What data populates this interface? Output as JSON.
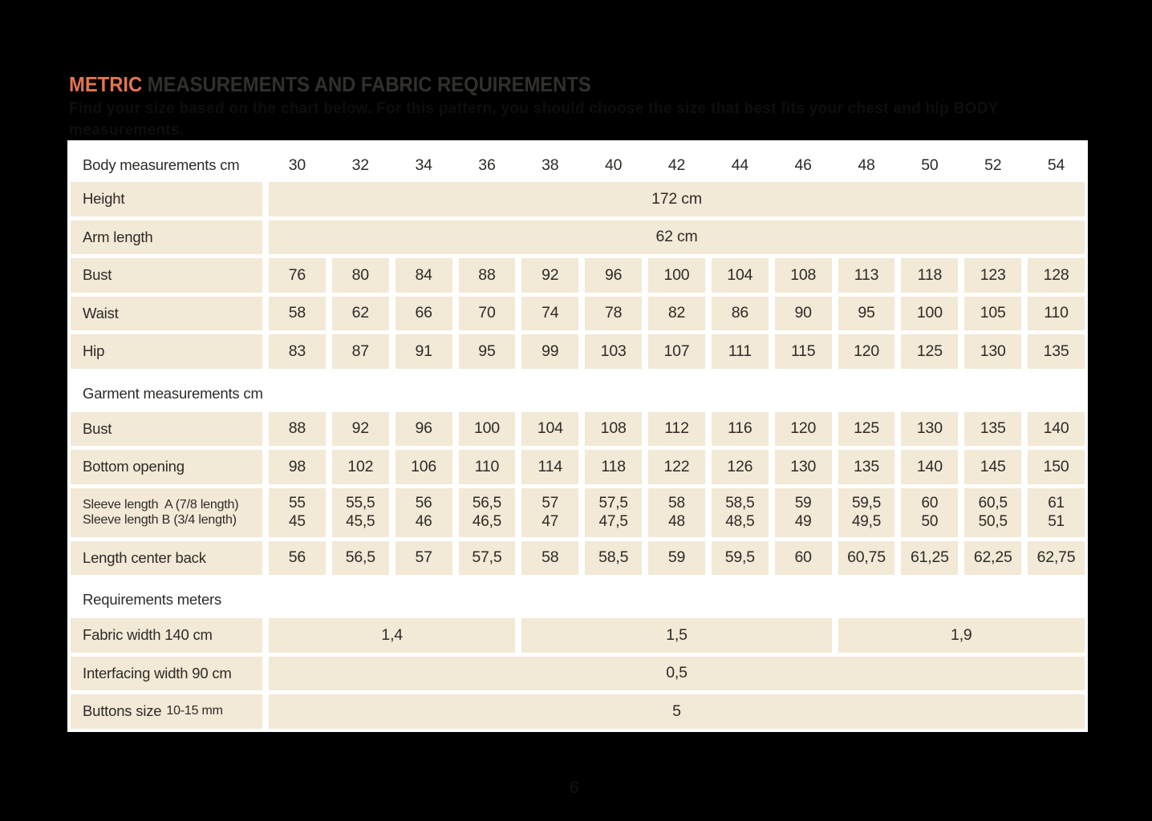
{
  "page": {
    "background": "#000000",
    "page_number": "6"
  },
  "header": {
    "title_accent": "METRIC",
    "title_rest": " MEASUREMENTS AND FABRIC REQUIREMENTS",
    "subtitle_line1": "Find your size based on the chart below. For this pattern, you should choose the size that best fits your chest and hip BODY",
    "subtitle_line2": "measurements.",
    "accent_color": "#e2764e"
  },
  "table": {
    "cell_color": "#f2e9d6",
    "text_color": "#2d2b28",
    "rows": [
      {
        "type": "head",
        "label": "Body measurements cm",
        "values": [
          "30",
          "32",
          "34",
          "36",
          "38",
          "40",
          "42",
          "44",
          "46",
          "48",
          "50",
          "52",
          "54"
        ]
      },
      {
        "type": "span",
        "label": "Height",
        "value": "172 cm"
      },
      {
        "type": "span",
        "label": "Arm length",
        "value": "62 cm"
      },
      {
        "type": "data",
        "label": "Bust",
        "values": [
          "76",
          "80",
          "84",
          "88",
          "92",
          "96",
          "100",
          "104",
          "108",
          "113",
          "118",
          "123",
          "128"
        ]
      },
      {
        "type": "data",
        "label": "Waist",
        "values": [
          "58",
          "62",
          "66",
          "70",
          "74",
          "78",
          "82",
          "86",
          "90",
          "95",
          "100",
          "105",
          "110"
        ]
      },
      {
        "type": "data",
        "label": "Hip",
        "values": [
          "83",
          "87",
          "91",
          "95",
          "99",
          "103",
          "107",
          "111",
          "115",
          "120",
          "125",
          "130",
          "135"
        ]
      },
      {
        "type": "section",
        "label": "Garment measurements cm"
      },
      {
        "type": "data",
        "label": "Bust",
        "values": [
          "88",
          "92",
          "96",
          "100",
          "104",
          "108",
          "112",
          "116",
          "120",
          "125",
          "130",
          "135",
          "140"
        ]
      },
      {
        "type": "data",
        "label": "Bottom opening",
        "values": [
          "98",
          "102",
          "106",
          "110",
          "114",
          "118",
          "122",
          "126",
          "130",
          "135",
          "140",
          "145",
          "150"
        ]
      },
      {
        "type": "data2",
        "label1": "Sleeve length  A (7/8 length)",
        "label2": "Sleeve length B (3/4 length)",
        "values1": [
          "55",
          "55,5",
          "56",
          "56,5",
          "57",
          "57,5",
          "58",
          "58,5",
          "59",
          "59,5",
          "60",
          "60,5",
          "61"
        ],
        "values2": [
          "45",
          "45,5",
          "46",
          "46,5",
          "47",
          "47,5",
          "48",
          "48,5",
          "49",
          "49,5",
          "50",
          "50,5",
          "51"
        ]
      },
      {
        "type": "data",
        "label": "Length center back",
        "values": [
          "56",
          "56,5",
          "57",
          "57,5",
          "58",
          "58,5",
          "59",
          "59,5",
          "60",
          "60,75",
          "61,25",
          "62,25",
          "62,75"
        ]
      },
      {
        "type": "section",
        "label": "Requirements meters"
      },
      {
        "type": "spans",
        "label": "Fabric width 140 cm",
        "segments": [
          {
            "value": "1,4",
            "cols": 4
          },
          {
            "value": "1,5",
            "cols": 5
          },
          {
            "value": "1,9",
            "cols": 4
          }
        ]
      },
      {
        "type": "span",
        "label": "Interfacing width 90 cm",
        "value": "0,5"
      },
      {
        "type": "span",
        "label": "Buttons size",
        "label_small": "10-15 mm",
        "value": "5"
      }
    ]
  }
}
